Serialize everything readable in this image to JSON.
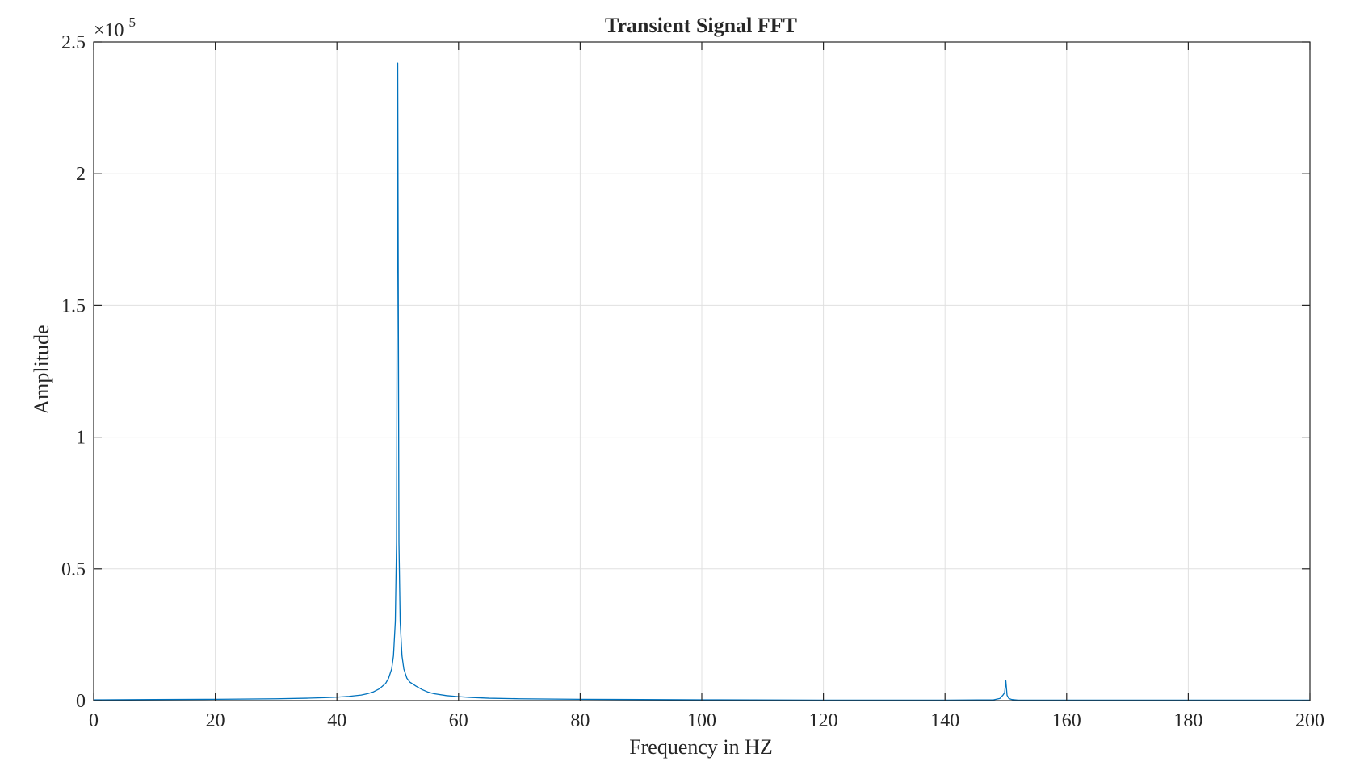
{
  "chart_data": {
    "type": "line",
    "title": "Transient Signal FFT",
    "xlabel": "Frequency in HZ",
    "ylabel": "Amplitude",
    "y_exponent_label": {
      "base": "×10",
      "exponent": "5"
    },
    "xlim": [
      0,
      200
    ],
    "ylim": [
      0,
      2.5
    ],
    "xticks": [
      0,
      20,
      40,
      60,
      80,
      100,
      120,
      140,
      160,
      180,
      200
    ],
    "xtick_labels": [
      "0",
      "20",
      "40",
      "60",
      "80",
      "100",
      "120",
      "140",
      "160",
      "180",
      "200"
    ],
    "yticks": [
      0,
      0.5,
      1,
      1.5,
      2,
      2.5
    ],
    "ytick_labels": [
      "0",
      "0.5",
      "1",
      "1.5",
      "2",
      "2.5"
    ],
    "grid": true,
    "line_color": "#0072BD",
    "series": [
      {
        "x": [
          0,
          10,
          20,
          30,
          35,
          38,
          40,
          42,
          44,
          45,
          46,
          47,
          48,
          48.5,
          49,
          49.3,
          49.6,
          49.8,
          50,
          50.2,
          50.4,
          50.7,
          51,
          51.5,
          52,
          53,
          54,
          55,
          56,
          58,
          60,
          62,
          65,
          70,
          80,
          90,
          100,
          120,
          140,
          148,
          149,
          149.5,
          149.8,
          150,
          150.2,
          150.5,
          151,
          152,
          160,
          180,
          200
        ],
        "y": [
          0.003,
          0.004,
          0.005,
          0.007,
          0.009,
          0.011,
          0.013,
          0.016,
          0.021,
          0.026,
          0.033,
          0.045,
          0.065,
          0.085,
          0.12,
          0.17,
          0.3,
          0.6,
          2.42,
          0.6,
          0.3,
          0.17,
          0.12,
          0.085,
          0.07,
          0.055,
          0.042,
          0.032,
          0.026,
          0.019,
          0.015,
          0.012,
          0.009,
          0.007,
          0.005,
          0.004,
          0.003,
          0.002,
          0.002,
          0.003,
          0.008,
          0.02,
          0.03,
          0.075,
          0.02,
          0.008,
          0.004,
          0.002,
          0.002,
          0.002,
          0.002
        ]
      }
    ]
  }
}
